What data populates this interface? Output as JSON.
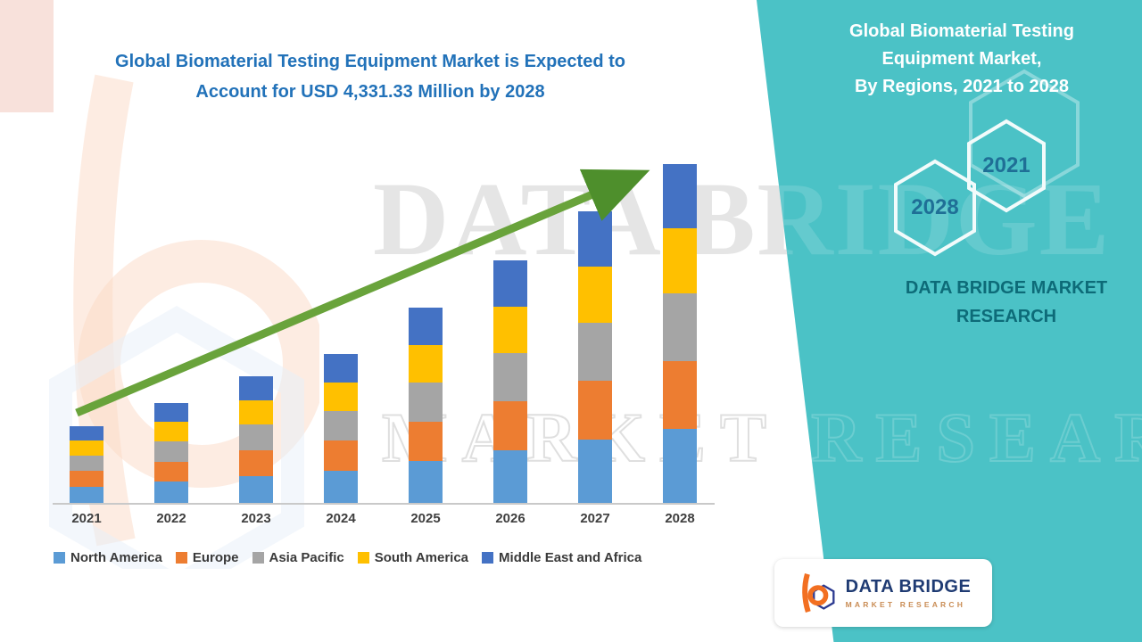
{
  "header": {
    "chart_title_line1": "Global Biomaterial Testing Equipment Market is Expected to",
    "chart_title_line2": "Account for USD 4,331.33 Million by 2028"
  },
  "chart_data": {
    "type": "bar",
    "stacked": true,
    "title": "Global Biomaterial Testing Equipment Market is Expected to Account for USD 4,331.33 Million by 2028",
    "unit": "USD Million",
    "categories": [
      "2021",
      "2022",
      "2023",
      "2024",
      "2025",
      "2026",
      "2027",
      "2028"
    ],
    "series": [
      {
        "name": "North America",
        "color": "#5B9BD5",
        "values": [
          218,
          283,
          358,
          420,
          550,
          683,
          820,
          953
        ]
      },
      {
        "name": "Europe",
        "color": "#ED7D31",
        "values": [
          198,
          257,
          325,
          382,
          500,
          621,
          746,
          866
        ]
      },
      {
        "name": "Asia Pacific",
        "color": "#A5A5A5",
        "values": [
          198,
          257,
          325,
          382,
          500,
          621,
          746,
          866
        ]
      },
      {
        "name": "South America",
        "color": "#FFC000",
        "values": [
          188,
          244,
          309,
          363,
          476,
          590,
          709,
          823
        ]
      },
      {
        "name": "Middle East and Africa",
        "color": "#4472C4",
        "values": [
          187,
          244,
          309,
          363,
          475,
          589,
          709,
          823.33
        ]
      }
    ],
    "totals": [
      989,
      1285,
      1626,
      1910,
      2501,
      3104,
      3730,
      4331.33
    ],
    "final_value_label": "USD 4,331.33 Million by 2028",
    "ylim": [
      0,
      4331.33
    ],
    "grid": false,
    "legend_position": "bottom",
    "trend_arrow": {
      "direction": "up",
      "color": "#69A33B"
    }
  },
  "right_panel": {
    "bg_color": "#4BC2C6",
    "title_lines": [
      "Global Biomaterial Testing",
      "Equipment Market,",
      "By Regions, 2021 to 2028"
    ],
    "hex_back_year": "2028",
    "hex_front_year": "2021",
    "brand_line1": "DATA BRIDGE MARKET",
    "brand_line2": "RESEARCH"
  },
  "watermark": {
    "line1": "DATA BRIDGE",
    "line2": "MARKET RESEARCH"
  },
  "logo_card": {
    "brand": "DATA BRIDGE",
    "sub": "MARKET RESEARCH"
  }
}
